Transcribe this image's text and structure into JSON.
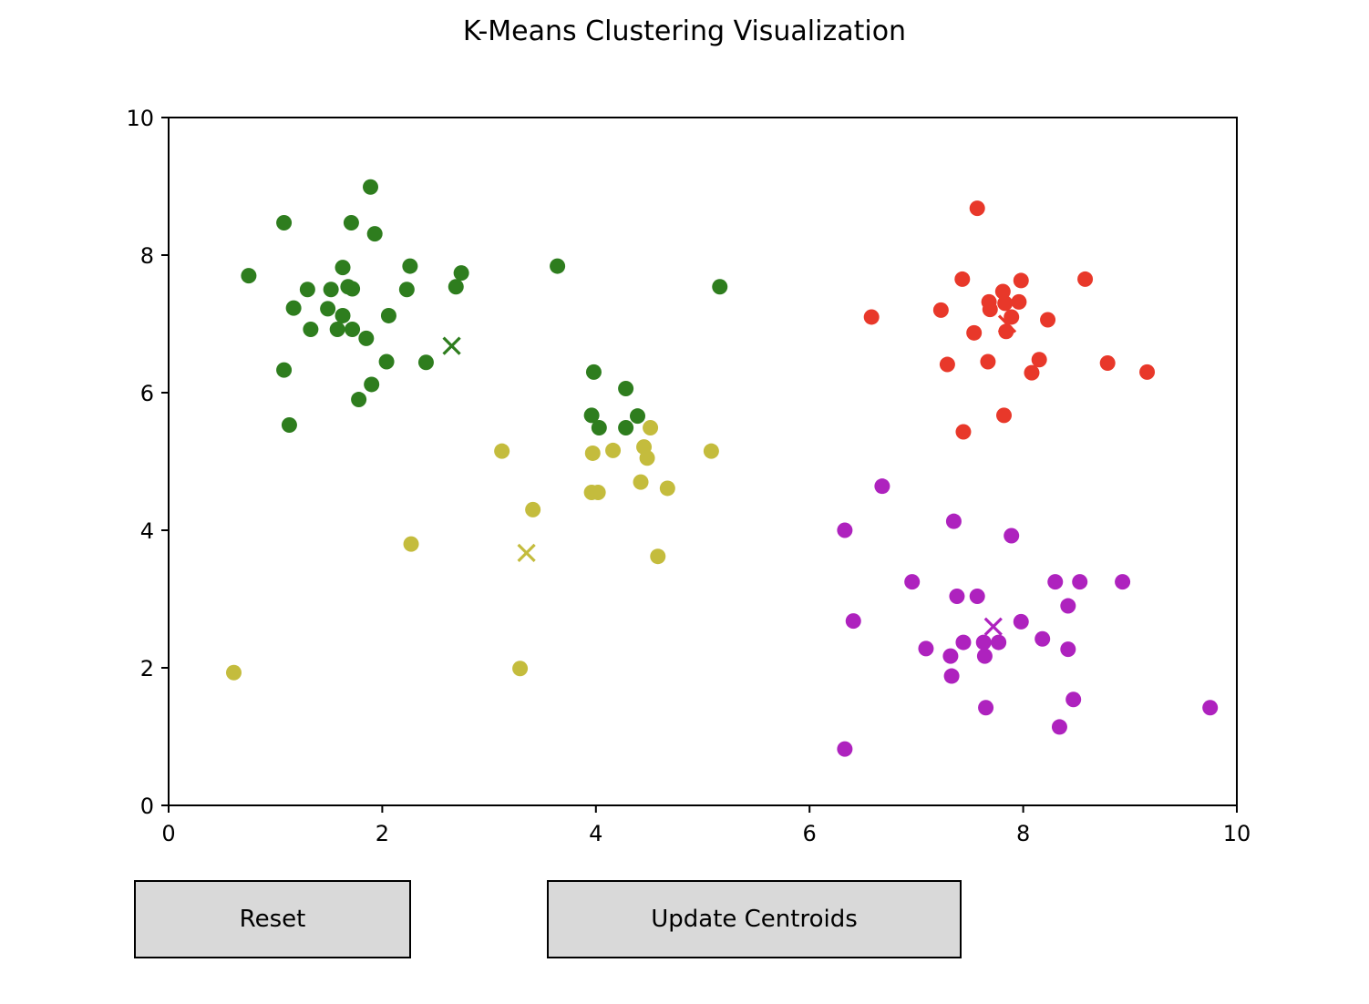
{
  "chart_data": {
    "type": "scatter",
    "title": "K-Means Clustering Visualization",
    "xlabel": "",
    "ylabel": "",
    "xlim": [
      0,
      10
    ],
    "ylim": [
      0,
      10
    ],
    "xticks": [
      0,
      2,
      4,
      6,
      8,
      10
    ],
    "yticks": [
      0,
      2,
      4,
      6,
      8,
      10
    ],
    "grid": false,
    "legend": "none",
    "clusters": [
      {
        "color": "#2e7d1e",
        "centroid": [
          2.65,
          6.68
        ],
        "points": [
          [
            0.75,
            7.7
          ],
          [
            1.08,
            8.47
          ],
          [
            1.08,
            6.33
          ],
          [
            1.13,
            5.53
          ],
          [
            1.17,
            7.23
          ],
          [
            1.3,
            7.5
          ],
          [
            1.33,
            6.92
          ],
          [
            1.49,
            7.22
          ],
          [
            1.52,
            7.5
          ],
          [
            1.58,
            6.92
          ],
          [
            1.63,
            7.82
          ],
          [
            1.63,
            7.12
          ],
          [
            1.68,
            7.54
          ],
          [
            1.71,
            8.47
          ],
          [
            1.72,
            7.51
          ],
          [
            1.72,
            6.92
          ],
          [
            1.78,
            5.9
          ],
          [
            1.85,
            6.79
          ],
          [
            1.89,
            8.99
          ],
          [
            1.9,
            6.12
          ],
          [
            1.93,
            8.31
          ],
          [
            2.04,
            6.45
          ],
          [
            2.06,
            7.12
          ],
          [
            2.23,
            7.5
          ],
          [
            2.26,
            7.84
          ],
          [
            2.41,
            6.44
          ],
          [
            2.69,
            7.54
          ],
          [
            2.74,
            7.74
          ],
          [
            3.64,
            7.84
          ],
          [
            5.16,
            7.54
          ],
          [
            3.98,
            6.3
          ],
          [
            4.28,
            6.06
          ],
          [
            3.96,
            5.67
          ],
          [
            4.03,
            5.49
          ],
          [
            4.28,
            5.49
          ],
          [
            4.39,
            5.66
          ]
        ]
      },
      {
        "color": "#c4bc3d",
        "centroid": [
          3.35,
          3.67
        ],
        "points": [
          [
            0.61,
            1.93
          ],
          [
            2.27,
            3.8
          ],
          [
            3.12,
            5.15
          ],
          [
            3.29,
            1.99
          ],
          [
            3.41,
            4.3
          ],
          [
            3.96,
            4.55
          ],
          [
            3.97,
            5.12
          ],
          [
            4.02,
            4.55
          ],
          [
            4.16,
            5.16
          ],
          [
            4.42,
            4.7
          ],
          [
            4.45,
            5.21
          ],
          [
            4.48,
            5.05
          ],
          [
            4.51,
            5.49
          ],
          [
            4.58,
            3.62
          ],
          [
            4.67,
            4.61
          ],
          [
            5.08,
            5.15
          ]
        ]
      },
      {
        "color": "#e8382a",
        "centroid": [
          7.85,
          7.0
        ],
        "points": [
          [
            6.58,
            7.1
          ],
          [
            7.23,
            7.2
          ],
          [
            7.29,
            6.41
          ],
          [
            7.43,
            7.65
          ],
          [
            7.44,
            5.43
          ],
          [
            7.54,
            6.87
          ],
          [
            7.57,
            8.68
          ],
          [
            7.67,
            6.45
          ],
          [
            7.68,
            7.32
          ],
          [
            7.69,
            7.21
          ],
          [
            7.81,
            7.47
          ],
          [
            7.82,
            5.67
          ],
          [
            7.83,
            7.3
          ],
          [
            7.84,
            6.89
          ],
          [
            7.89,
            7.1
          ],
          [
            7.96,
            7.32
          ],
          [
            7.98,
            7.63
          ],
          [
            8.08,
            6.29
          ],
          [
            8.15,
            6.48
          ],
          [
            8.23,
            7.06
          ],
          [
            8.58,
            7.65
          ],
          [
            8.79,
            6.43
          ],
          [
            9.16,
            6.3
          ]
        ]
      },
      {
        "color": "#ae22be",
        "centroid": [
          7.72,
          2.6
        ],
        "points": [
          [
            6.33,
            4.0
          ],
          [
            6.33,
            0.82
          ],
          [
            6.41,
            2.68
          ],
          [
            6.68,
            4.64
          ],
          [
            6.96,
            3.25
          ],
          [
            7.09,
            2.28
          ],
          [
            7.32,
            2.17
          ],
          [
            7.33,
            1.88
          ],
          [
            7.35,
            4.13
          ],
          [
            7.38,
            3.04
          ],
          [
            7.44,
            2.37
          ],
          [
            7.57,
            3.04
          ],
          [
            7.63,
            2.37
          ],
          [
            7.64,
            2.17
          ],
          [
            7.65,
            1.42
          ],
          [
            7.77,
            2.37
          ],
          [
            7.89,
            3.92
          ],
          [
            7.98,
            2.67
          ],
          [
            8.18,
            2.42
          ],
          [
            8.3,
            3.25
          ],
          [
            8.34,
            1.14
          ],
          [
            8.42,
            2.27
          ],
          [
            8.42,
            2.9
          ],
          [
            8.47,
            1.54
          ],
          [
            8.53,
            3.25
          ],
          [
            8.93,
            3.25
          ],
          [
            9.75,
            1.42
          ]
        ]
      }
    ]
  },
  "controls": {
    "reset_label": "Reset",
    "update_label": "Update Centroids"
  }
}
